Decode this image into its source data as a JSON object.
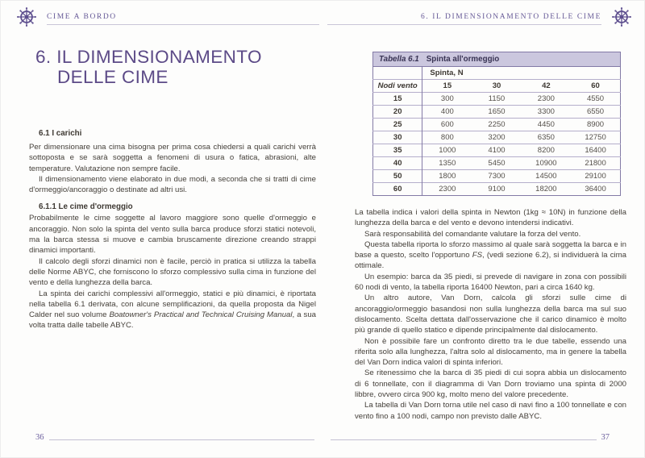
{
  "colors": {
    "accent_purple": "#5c4a87",
    "header_purple": "#655896",
    "body_text": "#45403a",
    "table_band_bg": "#cbc7de",
    "table_border": "#837aa6",
    "table_row_line": "#b5aecb"
  },
  "header": {
    "left_title": "CIME A BORDO",
    "right_title": "6. IL DIMENSIONAMENTO DELLE CIME"
  },
  "left_page": {
    "page_number": "36",
    "chapter_title_line1": "6. IL DIMENSIONAMENTO",
    "chapter_title_line2": "DELLE CIME",
    "s61": {
      "heading": "6.1 I carichi",
      "paras": {
        "p0": [
          {
            "t": "Per dimensionare una cima bisogna per prima cosa chiedersi a quali carichi verrà sottoposta e se sarà soggetta a fenomeni di usura o fatica, abrasioni, alte temperature. Valutazione non sempre facile."
          }
        ],
        "p1": [
          {
            "t": "Il dimensionamento viene elaborato in due modi, a seconda che si tratti di cime d'ormeggio/ancoraggio o destinate ad altri usi."
          }
        ]
      }
    },
    "s611": {
      "heading": "6.1.1 Le cime d'ormeggio",
      "paras": {
        "p0": [
          {
            "t": "Probabilmente le cime soggette al lavoro maggiore sono quelle d'ormeggio e ancoraggio. Non solo la spinta del vento sulla barca produce sforzi statici notevoli, ma la barca stessa si muove e cambia bruscamente direzione creando strappi dinamici importanti."
          }
        ],
        "p1": [
          {
            "t": "Il calcolo degli sforzi dinamici non è facile, perciò in pratica si utilizza la tabella delle Norme ABYC, che forniscono lo sforzo complessivo sulla cima in funzione del vento e della lunghezza della barca."
          }
        ],
        "p2": [
          {
            "t": "La spinta dei carichi complessivi all'ormeggio, statici e più dinamici, è riportata nella tabella 6.1 derivata, con alcune semplificazioni, da quella proposta da Nigel Calder nel suo volume "
          },
          {
            "t": "Boatowner's Practical and Technical Cruising Manual",
            "i": true
          },
          {
            "t": ", a sua volta tratta dalle tabelle ABYC."
          }
        ]
      }
    }
  },
  "table": {
    "caption_label": "Tabella 6.1",
    "caption_title": "Spinta all'ormeggio",
    "group_header": "Spinta, N",
    "row_header": "Nodi vento",
    "col_headers": [
      "15",
      "30",
      "42",
      "60"
    ],
    "rows": [
      {
        "wind": "15",
        "values": [
          "300",
          "1150",
          "2300",
          "4550"
        ]
      },
      {
        "wind": "20",
        "values": [
          "400",
          "1650",
          "3300",
          "6550"
        ]
      },
      {
        "wind": "25",
        "values": [
          "600",
          "2250",
          "4450",
          "8900"
        ]
      },
      {
        "wind": "30",
        "values": [
          "800",
          "3200",
          "6350",
          "12750"
        ]
      },
      {
        "wind": "35",
        "values": [
          "1000",
          "4100",
          "8200",
          "16400"
        ]
      },
      {
        "wind": "40",
        "values": [
          "1350",
          "5450",
          "10900",
          "21800"
        ]
      },
      {
        "wind": "50",
        "values": [
          "1800",
          "7300",
          "14500",
          "29100"
        ]
      },
      {
        "wind": "60",
        "values": [
          "2300",
          "9100",
          "18200",
          "36400"
        ]
      }
    ]
  },
  "right_page": {
    "page_number": "37",
    "paras": {
      "p0": [
        {
          "t": "La tabella indica i valori della spinta in Newton (1kg ≈ 10N) in funzione della lunghezza della barca e del vento e devono intendersi indicativi."
        }
      ],
      "p1": [
        {
          "t": "Sarà responsabilità del comandante valutare la forza del vento."
        }
      ],
      "p2": [
        {
          "t": "Questa tabella riporta lo sforzo massimo al quale sarà soggetta la barca e in base a questo, scelto l'opportuno "
        },
        {
          "t": "FS",
          "i": true
        },
        {
          "t": ", (vedi sezione 6.2), si individuerà la cima ottimale."
        }
      ],
      "p3": [
        {
          "t": "Un esempio: barca da 35 piedi, si prevede di navigare in zona con possibili 60 nodi di vento, la tabella riporta 16400 Newton, pari a circa 1640 kg."
        }
      ],
      "p4": [
        {
          "t": "Un altro autore, Van Dorn, calcola gli sforzi sulle cime di ancoraggio/ormeggio basandosi non sulla lunghezza della barca ma sul suo dislocamento. Scelta dettata dall'osservazione che il carico dinamico è molto più grande di quello statico e dipende principalmente dal dislocamento."
        }
      ],
      "p5": [
        {
          "t": "Non è possibile fare un confronto diretto tra le due tabelle, essendo una riferita solo alla lunghezza, l'altra solo al dislocamento, ma in genere la tabella del Van Dorn indica valori di spinta inferiori."
        }
      ],
      "p6": [
        {
          "t": "Se ritenessimo che la barca di 35 piedi di cui sopra abbia un dislocamento di 6 tonnellate, con il diagramma di Van Dorn troviamo una spinta di 2000 libbre, ovvero circa 900 kg, molto meno del valore precedente."
        }
      ],
      "p7": [
        {
          "t": "La tabella di Van Dorn torna utile nel caso di navi fino a 100 tonnellate e con vento fino a 100 nodi, campo non previsto dalle ABYC."
        }
      ]
    }
  }
}
